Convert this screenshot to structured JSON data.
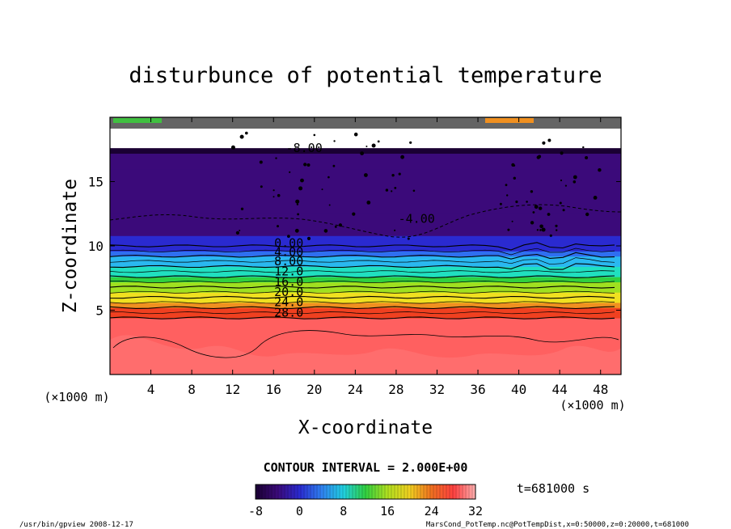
{
  "chart_data": {
    "type": "heatmap",
    "title": "disturbunce of potential temperature",
    "xlabel": "X-coordinate",
    "ylabel": "Z-coordinate",
    "x_unit": "(×1000 m)",
    "z_unit": "(×1000 m)",
    "xlim": [
      0,
      50
    ],
    "ylim": [
      0,
      20
    ],
    "x_ticks": [
      4,
      8,
      12,
      16,
      20,
      24,
      28,
      32,
      36,
      40,
      44,
      48
    ],
    "y_ticks": [
      5,
      10,
      15
    ],
    "contour_interval_text": "CONTOUR INTERVAL = 2.000E+00",
    "time_text": "t=681000 s",
    "colorbar": {
      "min": -8,
      "max": 32,
      "ticks": [
        -8,
        0,
        8,
        16,
        24,
        32
      ]
    },
    "contour_labels": [
      {
        "text": "-8.00",
        "x": 19,
        "z": 17.3
      },
      {
        "text": "-4.00",
        "x": 30,
        "z": 11.8
      },
      {
        "text": "0.00",
        "x": 17.5,
        "z": 9.9
      },
      {
        "text": "4.00",
        "x": 17.5,
        "z": 9.2
      },
      {
        "text": "8.00",
        "x": 17.5,
        "z": 8.5
      },
      {
        "text": "12.0",
        "x": 17.5,
        "z": 7.7
      },
      {
        "text": "16.0",
        "x": 17.5,
        "z": 6.9
      },
      {
        "text": "20.0",
        "x": 17.5,
        "z": 6.1
      },
      {
        "text": "24.0",
        "x": 17.5,
        "z": 5.3
      },
      {
        "text": "28.0",
        "x": 17.5,
        "z": 4.5
      }
    ],
    "layers": [
      {
        "z0": 0.0,
        "z1": 4.4,
        "value": 30
      },
      {
        "z0": 4.4,
        "z1": 4.8,
        "value": 26
      },
      {
        "z0": 4.8,
        "z1": 5.2,
        "value": 24
      },
      {
        "z0": 5.2,
        "z1": 5.6,
        "value": 22
      },
      {
        "z0": 5.6,
        "z1": 6.0,
        "value": 20
      },
      {
        "z0": 6.0,
        "z1": 6.4,
        "value": 18
      },
      {
        "z0": 6.4,
        "z1": 6.8,
        "value": 16
      },
      {
        "z0": 6.8,
        "z1": 7.2,
        "value": 14
      },
      {
        "z0": 7.2,
        "z1": 7.6,
        "value": 12
      },
      {
        "z0": 7.6,
        "z1": 8.0,
        "value": 10
      },
      {
        "z0": 8.0,
        "z1": 8.4,
        "value": 8
      },
      {
        "z0": 8.4,
        "z1": 8.8,
        "value": 6
      },
      {
        "z0": 8.8,
        "z1": 9.2,
        "value": 4
      },
      {
        "z0": 9.2,
        "z1": 9.6,
        "value": 2
      },
      {
        "z0": 9.6,
        "z1": 10.0,
        "value": 0
      },
      {
        "z0": 10.0,
        "z1": 10.8,
        "value": -2
      },
      {
        "z0": 10.8,
        "z1": 12.5,
        "value": -4
      },
      {
        "z0": 12.5,
        "z1": 16.0,
        "value": -5
      },
      {
        "z0": 16.0,
        "z1": 17.2,
        "value": -6
      },
      {
        "z0": 17.2,
        "z1": 17.6,
        "value": -8
      }
    ],
    "colors": [
      "#1a0033",
      "#3b0a7a",
      "#2a2ad0",
      "#2f6ff0",
      "#2ab8f0",
      "#20e0c0",
      "#30d040",
      "#a0e020",
      "#f0e020",
      "#f09020",
      "#f04020",
      "#ff6060",
      "#ff9a9a"
    ]
  },
  "footer": {
    "left": "/usr/bin/gpview  2008-12-17",
    "right": "MarsCond_PotTemp.nc@PotTempDist,x=0:50000,z=0:20000,t=681000"
  }
}
